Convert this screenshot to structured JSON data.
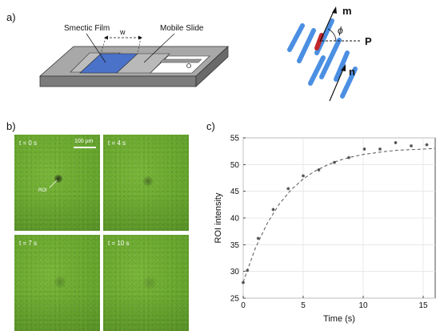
{
  "panel_a": {
    "label": "a)",
    "film_label": "Smectic Film",
    "slide_label": "Mobile Slide",
    "width_label": "w",
    "vector_m": "m",
    "vector_n": "n",
    "vector_p": "P",
    "angle_symbol": "ϕ",
    "colors": {
      "film": "#4a72c9",
      "rod": "#4b8fe3",
      "rod_highlight": "#c0272d",
      "base": "#8e8e8e"
    }
  },
  "panel_b": {
    "label": "b)",
    "scale_bar": "100 µm",
    "roi_label": "ROI",
    "frames": [
      {
        "time": "t = 0 s",
        "spot_intensity": 1.0
      },
      {
        "time": "t = 4 s",
        "spot_intensity": 0.45
      },
      {
        "time": "t = 7 s",
        "spot_intensity": 0.25
      },
      {
        "time": "t = 10 s",
        "spot_intensity": 0.15
      }
    ]
  },
  "panel_c": {
    "label": "c)"
  },
  "chart_data": {
    "type": "scatter",
    "title": "",
    "xlabel": "Time (s)",
    "ylabel": "ROI intensity",
    "xlim": [
      0,
      16
    ],
    "ylim": [
      25,
      55
    ],
    "xticks": [
      0,
      5,
      10,
      15
    ],
    "yticks": [
      25,
      30,
      35,
      40,
      45,
      50,
      55
    ],
    "grid": true,
    "series": [
      {
        "style": "markers",
        "x": [
          0,
          0.35,
          1.25,
          2.5,
          3.75,
          5.0,
          6.3,
          7.6,
          8.8,
          10.1,
          11.4,
          12.7,
          14.0,
          15.3
        ],
        "y": [
          27.9,
          30.2,
          36.2,
          41.6,
          45.5,
          47.9,
          49.0,
          50.4,
          51.3,
          52.9,
          52.9,
          54.1,
          53.5,
          53.7
        ]
      },
      {
        "style": "dashed-fit",
        "x": [
          0,
          1,
          2,
          3,
          4,
          5,
          6,
          7,
          8,
          9,
          10,
          11,
          12,
          13,
          14,
          15,
          16
        ],
        "y": [
          28.0,
          34.3,
          39.0,
          42.6,
          45.3,
          47.3,
          48.8,
          49.9,
          50.8,
          51.4,
          51.9,
          52.2,
          52.5,
          52.7,
          52.8,
          52.9,
          53.0
        ]
      }
    ]
  }
}
